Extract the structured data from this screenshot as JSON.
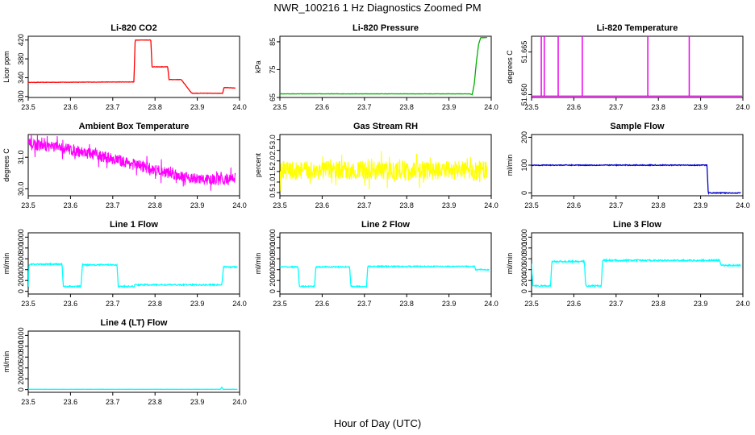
{
  "figure": {
    "title": "NWR_100216  1 Hz Diagnostics Zoomed PM",
    "xlabel": "Hour of Day (UTC)"
  },
  "chart_data": [
    {
      "type": "line",
      "title": "Li-820 CO2",
      "ylabel": "Licor ppm",
      "color": "#ff0000",
      "xlim": [
        23.5,
        24.0
      ],
      "ylim": [
        298,
        428
      ],
      "xticks": [
        23.5,
        23.6,
        23.7,
        23.8,
        23.9,
        24.0
      ],
      "yticks": [
        300,
        340,
        380,
        420
      ],
      "noise": 0.4,
      "series": [
        {
          "x": [
            23.5,
            23.75,
            23.753,
            23.79,
            23.793,
            23.83,
            23.833,
            23.86,
            23.863,
            23.885,
            23.888,
            23.96,
            23.963,
            23.99
          ],
          "y": [
            330,
            331,
            420,
            420,
            363,
            363,
            336,
            336,
            335,
            309,
            307,
            307,
            319,
            318
          ]
        }
      ]
    },
    {
      "type": "line",
      "title": "Li-820 Pressure",
      "ylabel": "kPa",
      "color": "#00b000",
      "xlim": [
        23.5,
        24.0
      ],
      "ylim": [
        65,
        87
      ],
      "xticks": [
        23.5,
        23.6,
        23.7,
        23.8,
        23.9,
        24.0
      ],
      "yticks": [
        65,
        75,
        85
      ],
      "noise": 0.05,
      "series": [
        {
          "x": [
            23.5,
            23.95,
            23.955,
            23.96,
            23.965,
            23.97,
            23.975,
            23.99
          ],
          "y": [
            66.3,
            66.3,
            66.0,
            70,
            78,
            84,
            86.5,
            86.5
          ]
        }
      ]
    },
    {
      "type": "spikes",
      "title": "Li-820 Temperature",
      "ylabel": "degrees C",
      "color": "#ee00ee",
      "xlim": [
        23.5,
        24.0
      ],
      "ylim": [
        51.649,
        51.6705
      ],
      "xticks": [
        23.5,
        23.6,
        23.7,
        23.8,
        23.9,
        24.0
      ],
      "yticks": [
        51.65,
        51.665
      ],
      "yticklabels": [
        "51.650",
        "51.665"
      ],
      "baseline": 51.6495,
      "spikes": [
        23.523,
        23.53,
        23.563,
        23.62,
        23.775,
        23.873
      ]
    },
    {
      "type": "line",
      "title": "Ambient Box Temperature",
      "ylabel": "degrees C",
      "color": "#ff00ff",
      "xlim": [
        23.5,
        24.0
      ],
      "ylim": [
        29.78,
        31.72
      ],
      "xticks": [
        23.5,
        23.6,
        23.7,
        23.8,
        23.9,
        24.0
      ],
      "yticks": [
        30.0,
        31.0
      ],
      "yticklabels": [
        "30.0",
        "31.0"
      ],
      "noise": 0.18,
      "dense": true,
      "series": [
        {
          "x": [
            23.5,
            23.55,
            23.6,
            23.7,
            23.8,
            23.85,
            23.9,
            23.95,
            23.99
          ],
          "y": [
            31.4,
            31.35,
            31.25,
            30.95,
            30.6,
            30.45,
            30.3,
            30.28,
            30.35
          ]
        }
      ]
    },
    {
      "type": "line",
      "title": "Gas Stream RH",
      "ylabel": "percent",
      "color": "#ffff00",
      "xlim": [
        23.5,
        24.0
      ],
      "ylim": [
        0.35,
        3.25
      ],
      "xticks": [
        23.5,
        23.6,
        23.7,
        23.8,
        23.9,
        24.0
      ],
      "yticks": [
        0.5,
        1.0,
        1.5,
        2.0,
        2.5,
        3.0
      ],
      "yticklabels": [
        "0.5",
        "1.0",
        "1.5",
        "2.0",
        "2.5",
        "3.0"
      ],
      "noise": 0.45,
      "dense": true,
      "series": [
        {
          "x": [
            23.5,
            23.99
          ],
          "y": [
            1.55,
            1.55
          ]
        }
      ]
    },
    {
      "type": "line",
      "title": "Sample Flow",
      "ylabel": "ml/min",
      "color": "#0000cc",
      "xlim": [
        23.5,
        24.0
      ],
      "ylim": [
        -10,
        210
      ],
      "xticks": [
        23.5,
        23.6,
        23.7,
        23.8,
        23.9,
        24.0
      ],
      "yticks": [
        0,
        100,
        200
      ],
      "noise": 1.5,
      "series": [
        {
          "x": [
            23.5,
            23.915,
            23.918,
            23.995
          ],
          "y": [
            100,
            100,
            0,
            0
          ]
        }
      ]
    },
    {
      "type": "line",
      "title": "Line 1 Flow",
      "ylabel": "ml/min",
      "color": "#00ffff",
      "xlim": [
        23.5,
        24.0
      ],
      "ylim": [
        -50,
        1080
      ],
      "xticks": [
        23.5,
        23.6,
        23.7,
        23.8,
        23.9,
        24.0
      ],
      "yticks": [
        0,
        200,
        400,
        600,
        800,
        1000
      ],
      "noise": 12,
      "series": [
        {
          "x": [
            23.5,
            23.502,
            23.505,
            23.58,
            23.583,
            23.625,
            23.628,
            23.71,
            23.713,
            23.75,
            23.753,
            23.958,
            23.962,
            23.995
          ],
          "y": [
            100,
            490,
            500,
            500,
            90,
            90,
            490,
            490,
            90,
            90,
            120,
            120,
            450,
            450
          ]
        }
      ]
    },
    {
      "type": "line",
      "title": "Line 2 Flow",
      "ylabel": "ml/min",
      "color": "#00ffff",
      "xlim": [
        23.5,
        24.0
      ],
      "ylim": [
        -50,
        1080
      ],
      "xticks": [
        23.5,
        23.6,
        23.7,
        23.8,
        23.9,
        24.0
      ],
      "yticks": [
        0,
        200,
        400,
        600,
        800,
        1000
      ],
      "noise": 10,
      "series": [
        {
          "x": [
            23.5,
            23.543,
            23.546,
            23.582,
            23.585,
            23.665,
            23.668,
            23.705,
            23.708,
            23.96,
            23.963,
            23.995
          ],
          "y": [
            450,
            450,
            90,
            90,
            450,
            450,
            90,
            90,
            460,
            460,
            400,
            400
          ]
        }
      ]
    },
    {
      "type": "line",
      "title": "Line 3 Flow",
      "ylabel": "ml/min",
      "color": "#00ffff",
      "xlim": [
        23.5,
        24.0
      ],
      "ylim": [
        -50,
        1080
      ],
      "xticks": [
        23.5,
        23.6,
        23.7,
        23.8,
        23.9,
        24.0
      ],
      "yticks": [
        0,
        200,
        400,
        600,
        800,
        1000
      ],
      "noise": 14,
      "series": [
        {
          "x": [
            23.5,
            23.503,
            23.545,
            23.548,
            23.625,
            23.628,
            23.665,
            23.668,
            23.945,
            23.948,
            23.995
          ],
          "y": [
            500,
            100,
            100,
            550,
            550,
            100,
            100,
            570,
            570,
            480,
            480
          ]
        }
      ]
    },
    {
      "type": "line",
      "title": "Line 4 (LT) Flow",
      "ylabel": "ml/min",
      "color": "#00ffff",
      "xlim": [
        23.5,
        24.0
      ],
      "ylim": [
        -50,
        1080
      ],
      "xticks": [
        23.5,
        23.6,
        23.7,
        23.8,
        23.9,
        24.0
      ],
      "yticks": [
        0,
        200,
        400,
        600,
        800,
        1000
      ],
      "noise": 2,
      "series": [
        {
          "x": [
            23.5,
            23.955,
            23.958,
            23.961,
            23.964,
            23.995
          ],
          "y": [
            5,
            5,
            50,
            5,
            5,
            5
          ]
        }
      ]
    }
  ]
}
